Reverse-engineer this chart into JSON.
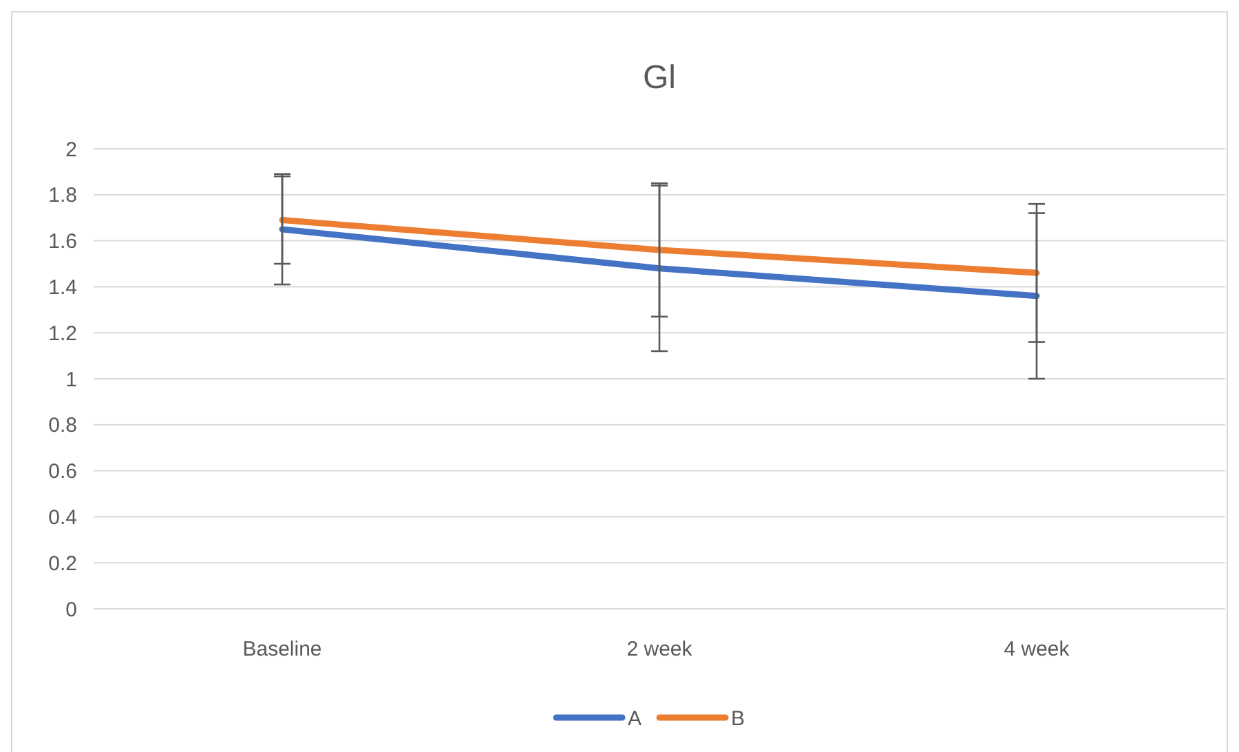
{
  "chart_data": {
    "type": "line",
    "title": "Gl",
    "categories": [
      "Baseline",
      "2 week",
      "4 week"
    ],
    "series": [
      {
        "name": "A",
        "color": "#4472c4",
        "values": [
          1.65,
          1.48,
          1.36
        ],
        "errors": [
          0.24,
          0.36,
          0.36
        ]
      },
      {
        "name": "B",
        "color": "#ed7d31",
        "values": [
          1.69,
          1.56,
          1.46
        ],
        "errors": [
          0.19,
          0.29,
          0.3
        ]
      }
    ],
    "ylim": [
      0,
      2
    ],
    "yticks": [
      0,
      0.2,
      0.4,
      0.6,
      0.8,
      1,
      1.2,
      1.4,
      1.6,
      1.8,
      2
    ],
    "grid": "y",
    "legend": "bottom",
    "marker": "none",
    "line_style": "solid"
  }
}
